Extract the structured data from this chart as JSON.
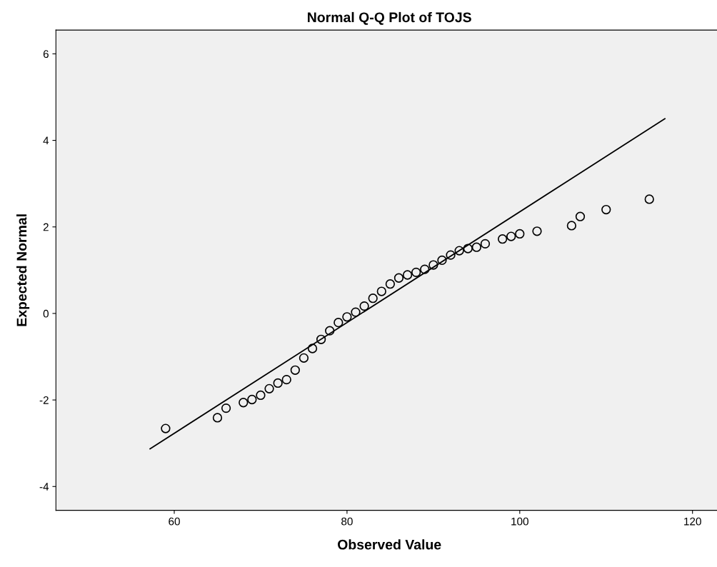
{
  "chart_data": {
    "type": "scatter",
    "title": "Normal Q-Q Plot of TOJS",
    "xlabel": "Observed Value",
    "ylabel": "Expected Normal",
    "xlim": [
      46.3,
      123.5
    ],
    "xticks": [
      60,
      80,
      100,
      120
    ],
    "ylim": [
      -4.55,
      6.55
    ],
    "yticks": [
      {
        "value": -4,
        "label": "-4"
      },
      {
        "value": -2,
        "label": "-2"
      },
      0,
      2,
      4,
      6
    ],
    "grid": false,
    "marker": "circle",
    "series": [
      {
        "color": "#000000",
        "x": [
          59,
          65,
          66,
          68,
          69,
          70,
          71,
          72,
          73,
          74,
          75,
          76,
          77,
          78,
          79,
          80,
          81,
          82,
          83,
          84,
          85,
          86,
          87,
          88,
          89,
          90,
          91,
          92,
          93,
          94,
          95,
          96,
          98,
          99,
          100,
          102,
          106,
          107,
          110,
          115
        ],
        "values": [
          -2.66,
          -2.41,
          -2.19,
          -2.06,
          -1.99,
          -1.89,
          -1.74,
          -1.61,
          -1.53,
          -1.31,
          -1.03,
          -0.81,
          -0.6,
          -0.4,
          -0.21,
          -0.08,
          0.03,
          0.17,
          0.35,
          0.51,
          0.68,
          0.82,
          0.89,
          0.95,
          1.02,
          1.12,
          1.23,
          1.35,
          1.45,
          1.5,
          1.53,
          1.61,
          1.72,
          1.78,
          1.84,
          1.9,
          2.03,
          2.24,
          2.4,
          2.64
        ]
      },
      {
        "type": "line",
        "color": "#000000",
        "x": [
          57.2,
          116.8
        ],
        "values": [
          -3.13,
          4.5
        ],
        "marker": "none",
        "line_style": "solid"
      }
    ]
  }
}
